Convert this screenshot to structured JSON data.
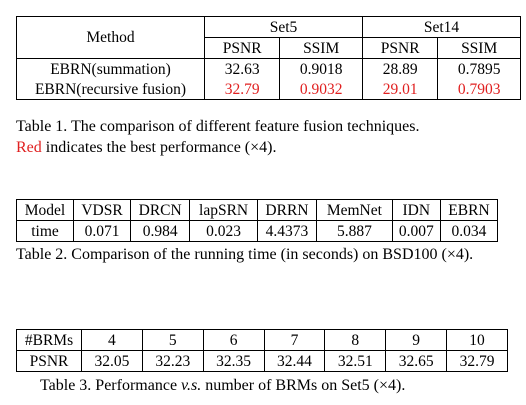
{
  "table1": {
    "method_header": "Method",
    "set_headers": [
      "Set5",
      "Set14"
    ],
    "metric_headers": [
      "PSNR",
      "SSIM",
      "PSNR",
      "SSIM"
    ],
    "rows": [
      {
        "method": "EBRN(summation)",
        "values": [
          "32.63",
          "0.9018",
          "28.89",
          "0.7895"
        ]
      },
      {
        "method": "EBRN(recursive fusion)",
        "values": [
          "32.79",
          "0.9032",
          "29.01",
          "0.7903"
        ]
      }
    ],
    "caption_line1": "Table 1. The comparison of different feature fusion techniques.",
    "caption_red_word": "Red",
    "caption_line2_rest": " indicates the best performance (×4).",
    "best_color": "#e02020"
  },
  "table2": {
    "header": [
      "Model",
      "VDSR",
      "DRCN",
      "lapSRN",
      "DRRN",
      "MemNet",
      "IDN",
      "EBRN"
    ],
    "row": [
      "time",
      "0.071",
      "0.984",
      "0.023",
      "4.4373",
      "5.887",
      "0.007",
      "0.034"
    ],
    "caption": "Table 2. Comparison of the running time (in seconds) on BSD100 (×4)."
  },
  "table3": {
    "header": [
      "#BRMs",
      "4",
      "5",
      "6",
      "7",
      "8",
      "9",
      "10"
    ],
    "row": [
      "PSNR",
      "32.05",
      "32.23",
      "32.35",
      "32.44",
      "32.51",
      "32.65",
      "32.79"
    ],
    "caption_prefix": "Table 3. Performance ",
    "caption_italic": "v.s.",
    "caption_suffix": " number of BRMs on Set5 (×4)."
  }
}
